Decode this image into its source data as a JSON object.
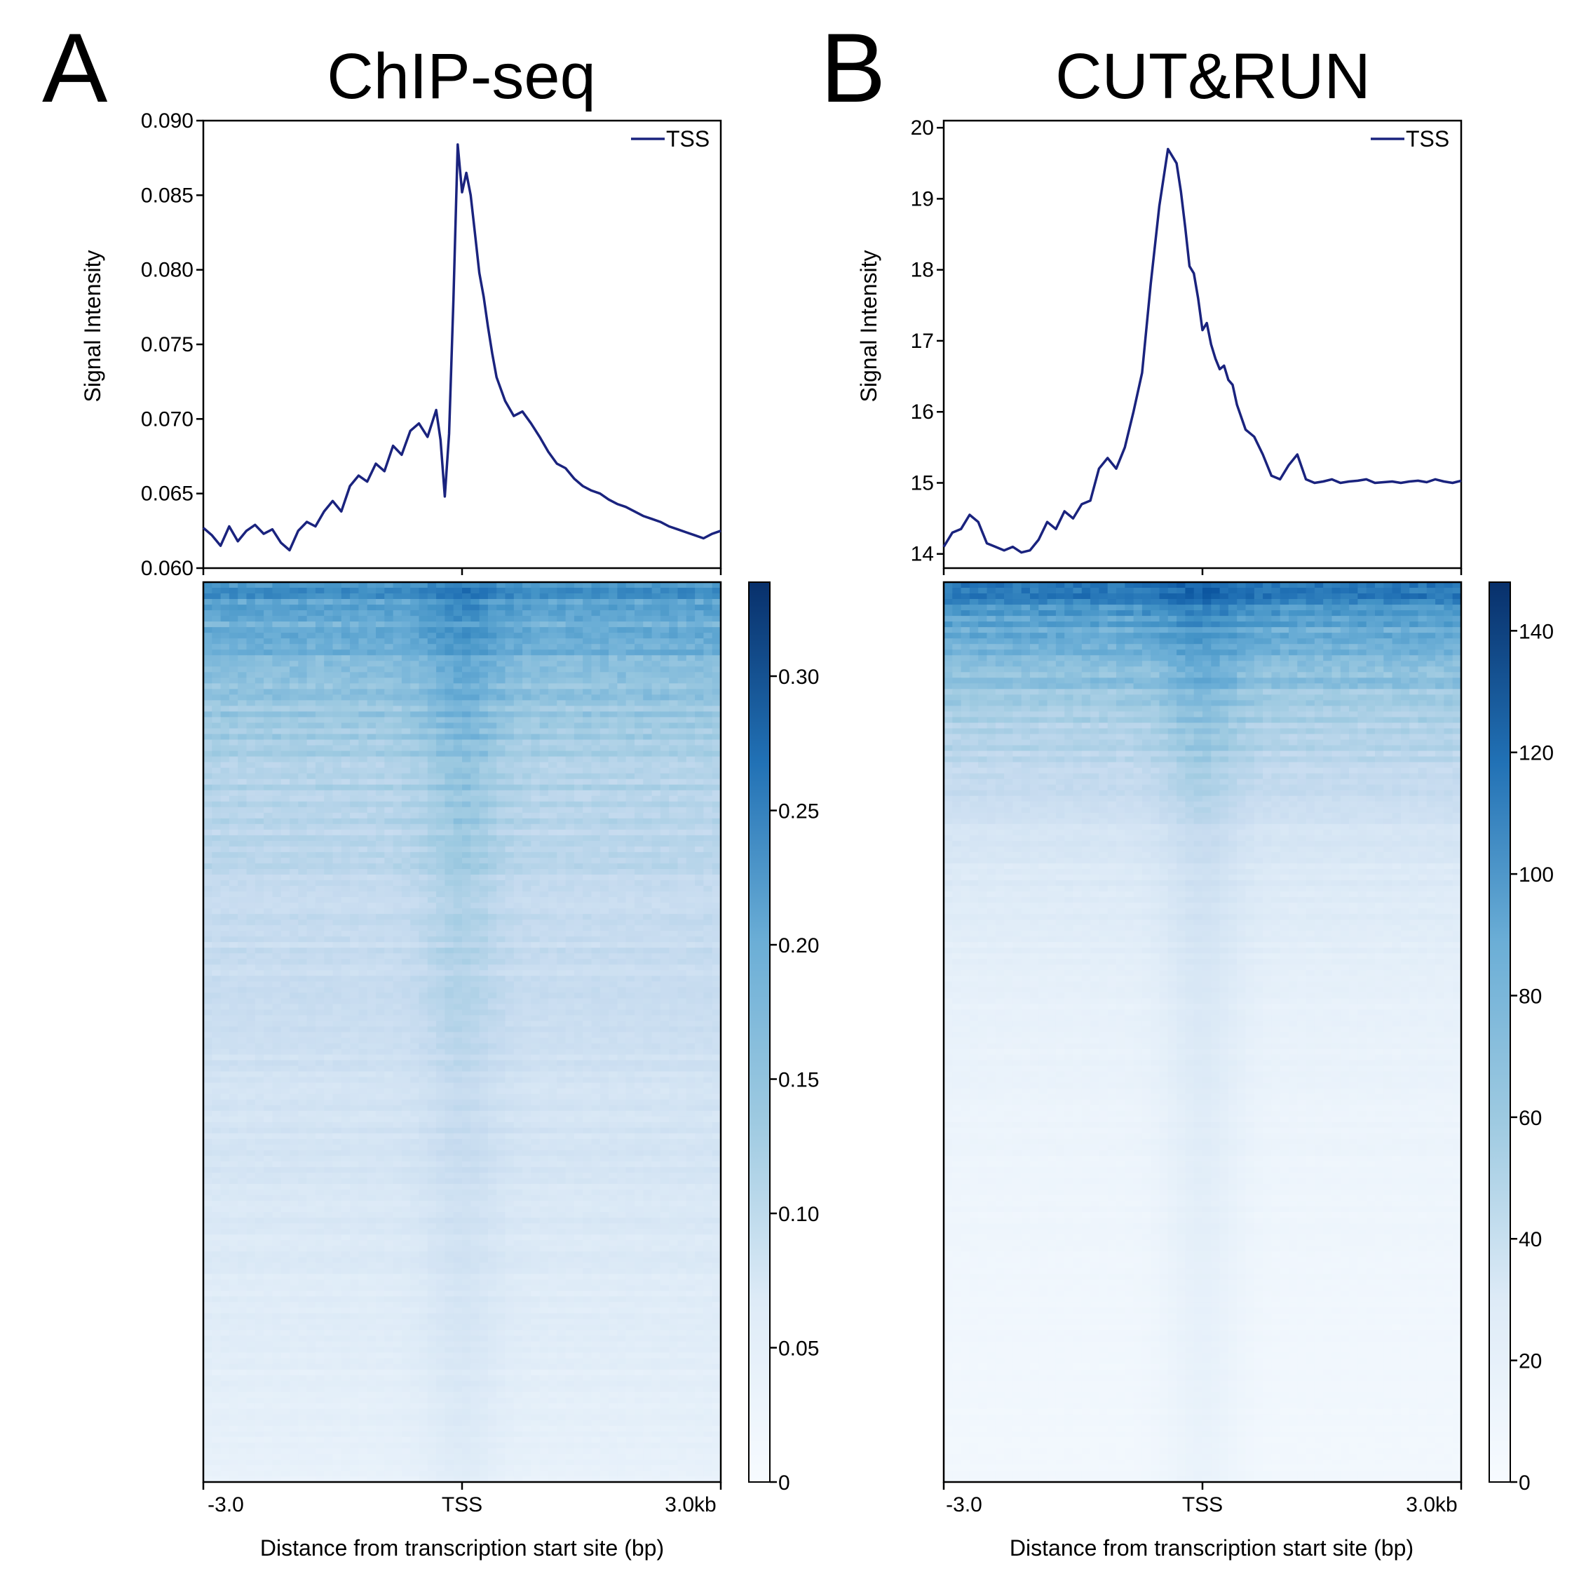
{
  "colors": {
    "profile_line": "#1a237e",
    "colormap_low": "#f7fbff",
    "colormap_mid": "#6baed6",
    "colormap_high": "#08306b"
  },
  "panels": [
    {
      "letter": "A",
      "title": "ChIP-seq",
      "profile_ylabel": "Signal Intensity",
      "heatmap_xlabel": "Distance from transcription start site (bp)",
      "x_tick_labels": [
        "-3.0",
        "TSS",
        "3.0kb"
      ]
    },
    {
      "letter": "B",
      "title": "CUT&RUN",
      "profile_ylabel": "Signal Intensity",
      "heatmap_xlabel": "Distance from transcription start site (bp)",
      "x_tick_labels": [
        "-3.0",
        "TSS",
        "3.0kb"
      ]
    }
  ],
  "chart_data": [
    {
      "type": "line",
      "panel": "A",
      "legend": "TSS",
      "legend_position": "top-right",
      "x_range_bp": [
        -3000,
        3000
      ],
      "ylim": [
        0.06,
        0.09
      ],
      "y_ticks": [
        0.06,
        0.065,
        0.07,
        0.075,
        0.08,
        0.085,
        0.09
      ],
      "y_tick_labels": [
        "0.060",
        "0.065",
        "0.070",
        "0.075",
        "0.080",
        "0.085",
        "0.090"
      ],
      "x": [
        -3000,
        -2900,
        -2800,
        -2700,
        -2600,
        -2500,
        -2400,
        -2300,
        -2200,
        -2100,
        -2000,
        -1900,
        -1800,
        -1700,
        -1600,
        -1500,
        -1400,
        -1300,
        -1200,
        -1100,
        -1000,
        -900,
        -800,
        -700,
        -600,
        -500,
        -400,
        -300,
        -250,
        -200,
        -150,
        -100,
        -50,
        0,
        50,
        100,
        150,
        200,
        250,
        300,
        350,
        400,
        500,
        600,
        700,
        800,
        900,
        1000,
        1100,
        1200,
        1300,
        1400,
        1500,
        1600,
        1700,
        1800,
        1900,
        2000,
        2100,
        2200,
        2300,
        2400,
        2500,
        2600,
        2700,
        2800,
        2900,
        3000
      ],
      "series": [
        {
          "values": [
            0.0627,
            0.0622,
            0.0615,
            0.0628,
            0.0618,
            0.0625,
            0.0629,
            0.0623,
            0.0626,
            0.0617,
            0.0612,
            0.0625,
            0.0631,
            0.0628,
            0.0638,
            0.0645,
            0.0638,
            0.0655,
            0.0662,
            0.0658,
            0.067,
            0.0665,
            0.0682,
            0.0676,
            0.0692,
            0.0697,
            0.0688,
            0.0706,
            0.0686,
            0.0648,
            0.069,
            0.078,
            0.0884,
            0.0852,
            0.0865,
            0.085,
            0.0824,
            0.0798,
            0.0782,
            0.0762,
            0.0744,
            0.0728,
            0.0712,
            0.0702,
            0.0705,
            0.0697,
            0.0688,
            0.0678,
            0.067,
            0.0667,
            0.066,
            0.0655,
            0.0652,
            0.065,
            0.0646,
            0.0643,
            0.0641,
            0.0638,
            0.0635,
            0.0633,
            0.0631,
            0.0628,
            0.0626,
            0.0624,
            0.0622,
            0.062,
            0.0623,
            0.0625
          ]
        }
      ],
      "heatmap": {
        "colorbar_range": [
          0,
          0.335
        ],
        "colorbar_ticks": [
          0,
          0.05,
          0.1,
          0.15,
          0.2,
          0.25,
          0.3
        ],
        "colorbar_tick_labels": [
          "0",
          "0.05",
          "0.10",
          "0.15",
          "0.20",
          "0.25",
          "0.30"
        ],
        "row_profile_fraction": [
          0.0,
          0.05,
          0.1,
          0.2,
          0.35,
          0.5,
          0.7,
          0.85,
          1.0
        ],
        "row_mean_values": [
          0.21,
          0.17,
          0.14,
          0.11,
          0.085,
          0.07,
          0.05,
          0.035,
          0.025
        ],
        "tss_enrichment": 0.035
      }
    },
    {
      "type": "line",
      "panel": "B",
      "legend": "TSS",
      "legend_position": "top-right",
      "x_range_bp": [
        -3000,
        3000
      ],
      "ylim": [
        13.8,
        20.1
      ],
      "y_ticks": [
        14,
        15,
        16,
        17,
        18,
        19,
        20
      ],
      "y_tick_labels": [
        "14",
        "15",
        "16",
        "17",
        "18",
        "19",
        "20"
      ],
      "x": [
        -3000,
        -2900,
        -2800,
        -2700,
        -2600,
        -2500,
        -2400,
        -2300,
        -2200,
        -2100,
        -2000,
        -1900,
        -1800,
        -1700,
        -1600,
        -1500,
        -1400,
        -1300,
        -1200,
        -1100,
        -1000,
        -900,
        -800,
        -700,
        -600,
        -500,
        -400,
        -300,
        -250,
        -200,
        -150,
        -100,
        -50,
        0,
        50,
        100,
        150,
        200,
        250,
        300,
        350,
        400,
        500,
        600,
        700,
        800,
        900,
        1000,
        1100,
        1200,
        1300,
        1400,
        1500,
        1600,
        1700,
        1800,
        1900,
        2000,
        2100,
        2200,
        2300,
        2400,
        2500,
        2600,
        2700,
        2800,
        2900,
        3000
      ],
      "series": [
        {
          "values": [
            14.1,
            14.3,
            14.35,
            14.55,
            14.45,
            14.15,
            14.1,
            14.05,
            14.1,
            14.02,
            14.05,
            14.2,
            14.45,
            14.35,
            14.6,
            14.5,
            14.7,
            14.75,
            15.2,
            15.35,
            15.2,
            15.5,
            16.0,
            16.55,
            17.8,
            18.9,
            19.7,
            19.5,
            19.1,
            18.6,
            18.05,
            17.95,
            17.6,
            17.15,
            17.25,
            16.95,
            16.75,
            16.6,
            16.65,
            16.45,
            16.38,
            16.1,
            15.75,
            15.65,
            15.4,
            15.1,
            15.05,
            15.25,
            15.4,
            15.05,
            15.0,
            15.02,
            15.05,
            15.0,
            15.02,
            15.03,
            15.05,
            15.0,
            15.01,
            15.02,
            15.0,
            15.02,
            15.03,
            15.01,
            15.05,
            15.02,
            15.0,
            15.03
          ]
        }
      ],
      "heatmap": {
        "colorbar_range": [
          0,
          148
        ],
        "colorbar_ticks": [
          0,
          20,
          40,
          60,
          80,
          100,
          120,
          140
        ],
        "colorbar_tick_labels": [
          "0",
          "20",
          "40",
          "60",
          "80",
          "100",
          "120",
          "140"
        ],
        "row_profile_fraction": [
          0.0,
          0.04,
          0.1,
          0.2,
          0.3,
          0.45,
          0.6,
          0.8,
          1.0
        ],
        "row_mean_values": [
          115,
          85,
          60,
          40,
          22,
          12,
          8,
          5,
          4
        ],
        "tss_enrichment": 14
      }
    }
  ]
}
